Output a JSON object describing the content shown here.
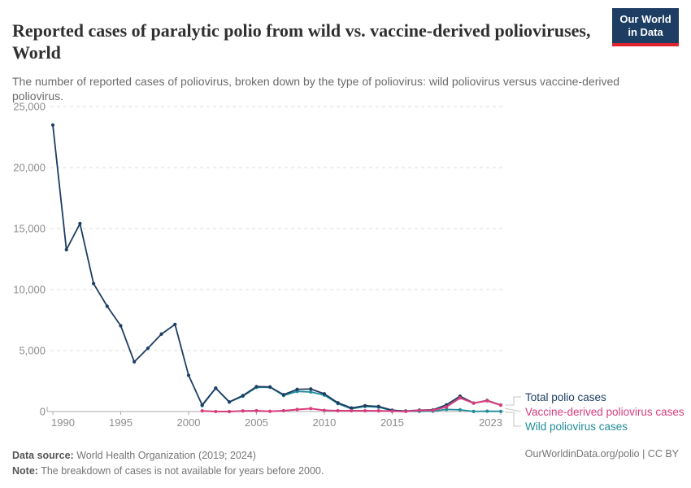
{
  "header": {
    "title": "Reported cases of paralytic polio from wild vs. vaccine-derived polioviruses, World",
    "subtitle": "The number of reported cases of poliovirus, broken down by the type of poliovirus: wild poliovirus versus vaccine-derived poliovirus.",
    "logo": {
      "line1": "Our World",
      "line2": "in Data",
      "bg_color": "#1d3d63",
      "bar_color": "#e0242e"
    }
  },
  "chart_data": {
    "type": "line",
    "title": "Reported cases of paralytic polio from wild vs. vaccine-derived polioviruses, World",
    "xlabel": "",
    "ylabel": "",
    "xlim": [
      1990,
      2023
    ],
    "ylim": [
      0,
      25000
    ],
    "xticks": [
      1990,
      1995,
      2000,
      2005,
      2010,
      2015,
      2023
    ],
    "yticks": [
      0,
      5000,
      10000,
      15000,
      20000,
      25000
    ],
    "grid": "horizontal-dashed",
    "legend_position": "right-of-line-ends",
    "series": [
      {
        "name": "Total polio cases",
        "color": "#1d3d63",
        "x": [
          1990,
          1991,
          1992,
          1993,
          1994,
          1995,
          1996,
          1997,
          1998,
          1999,
          2000,
          2001,
          2002,
          2003,
          2004,
          2005,
          2006,
          2007,
          2008,
          2009,
          2010,
          2011,
          2012,
          2013,
          2014,
          2015,
          2016,
          2017,
          2018,
          2019,
          2020,
          2021,
          2022,
          2023
        ],
        "values": [
          23484,
          13266,
          15406,
          10487,
          8635,
          7035,
          4074,
          5185,
          6349,
          7141,
          2971,
          537,
          1922,
          786,
          1311,
          2045,
          2017,
          1384,
          1817,
          1850,
          1449,
          717,
          291,
          479,
          415,
          106,
          42,
          118,
          137,
          554,
          1257,
          694,
          911,
          536
        ]
      },
      {
        "name": "Vaccine-derived poliovirus cases",
        "color": "#d73c7c",
        "x": [
          2001,
          2002,
          2003,
          2004,
          2005,
          2006,
          2007,
          2008,
          2009,
          2010,
          2011,
          2012,
          2013,
          2014,
          2015,
          2016,
          2017,
          2018,
          2019,
          2020,
          2021,
          2022,
          2023
        ],
        "values": [
          54,
          4,
          2,
          53,
          66,
          20,
          69,
          165,
          246,
          97,
          67,
          68,
          63,
          56,
          32,
          5,
          96,
          104,
          378,
          1117,
          688,
          881,
          524
        ]
      },
      {
        "name": "Wild poliovirus cases",
        "color": "#208c98",
        "x": [
          2001,
          2002,
          2003,
          2004,
          2005,
          2006,
          2007,
          2008,
          2009,
          2010,
          2011,
          2012,
          2013,
          2014,
          2015,
          2016,
          2017,
          2018,
          2019,
          2020,
          2021,
          2022,
          2023
        ],
        "values": [
          483,
          1918,
          784,
          1258,
          1979,
          1997,
          1315,
          1652,
          1604,
          1352,
          650,
          223,
          416,
          359,
          74,
          37,
          22,
          33,
          176,
          140,
          6,
          30,
          12
        ]
      }
    ]
  },
  "footer": {
    "source_label": "Data source:",
    "source_text": " World Health Organization (2019; 2024)",
    "note_label": "Note:",
    "note_text": " The breakdown of cases is not available for years before 2000.",
    "rights": "OurWorldinData.org/polio | CC BY"
  }
}
